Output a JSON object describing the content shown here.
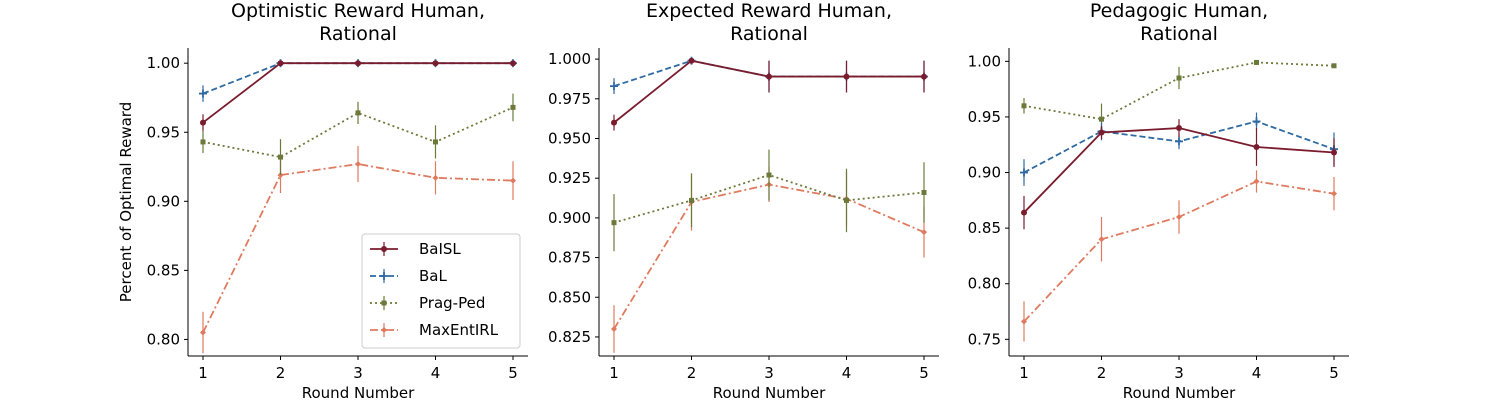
{
  "figure": {
    "ylabel": "Percent of Optimal Reward"
  },
  "series_styles": [
    {
      "name": "BaISL",
      "color": "#7a1c2e",
      "dash": "",
      "marker": "circle"
    },
    {
      "name": "BaL",
      "color": "#2f6aa3",
      "dash": "6,3",
      "marker": "plus"
    },
    {
      "name": "Prag-Ped",
      "color": "#6b7a3a",
      "dash": "2,3",
      "marker": "square"
    },
    {
      "name": "MaxEntIRL",
      "color": "#e07a5f",
      "dash": "8,3,2,3",
      "marker": "diamond"
    }
  ],
  "legend": {
    "placement": "lower-right",
    "panel": 0
  },
  "chart_data": [
    {
      "type": "line",
      "title_line1": "Optimistic Reward Human,",
      "title_line2": "Rational",
      "xlabel": "Round Number",
      "ylabel": "Percent of Optimal Reward",
      "x": [
        1,
        2,
        3,
        4,
        5
      ],
      "ylim": [
        0.788,
        1.011
      ],
      "yticks": [
        "0.80",
        "0.85",
        "0.90",
        "0.95",
        "1.00"
      ],
      "series": [
        {
          "name": "BaISL",
          "values": [
            0.957,
            1.0,
            1.0,
            1.0,
            1.0
          ],
          "err": [
            0.006,
            0.001,
            0.001,
            0.001,
            0.001
          ]
        },
        {
          "name": "BaL",
          "values": [
            0.978,
            1.0,
            1.0,
            1.0,
            1.0
          ],
          "err": [
            0.006,
            0.001,
            0.001,
            0.001,
            0.001
          ]
        },
        {
          "name": "Prag-Ped",
          "values": [
            0.943,
            0.932,
            0.964,
            0.943,
            0.968
          ],
          "err": [
            0.008,
            0.013,
            0.008,
            0.012,
            0.01
          ]
        },
        {
          "name": "MaxEntIRL",
          "values": [
            0.805,
            0.919,
            0.927,
            0.917,
            0.915
          ],
          "err": [
            0.015,
            0.013,
            0.013,
            0.012,
            0.014
          ]
        }
      ]
    },
    {
      "type": "line",
      "title_line1": "Expected Reward Human,",
      "title_line2": "Rational",
      "xlabel": "Round Number",
      "x": [
        1,
        2,
        3,
        4,
        5
      ],
      "ylim": [
        0.813,
        1.007
      ],
      "yticks": [
        "0.825",
        "0.850",
        "0.875",
        "0.900",
        "0.925",
        "0.950",
        "0.975",
        "1.000"
      ],
      "series": [
        {
          "name": "BaISL",
          "values": [
            0.96,
            0.999,
            0.989,
            0.989,
            0.989
          ],
          "err": [
            0.005,
            0.001,
            0.01,
            0.01,
            0.01
          ]
        },
        {
          "name": "BaL",
          "values": [
            0.983,
            0.999,
            0.989,
            0.989,
            0.989
          ],
          "err": [
            0.005,
            0.001,
            0.01,
            0.01,
            0.01
          ]
        },
        {
          "name": "Prag-Ped",
          "values": [
            0.897,
            0.911,
            0.927,
            0.911,
            0.916
          ],
          "err": [
            0.018,
            0.017,
            0.016,
            0.02,
            0.019
          ]
        },
        {
          "name": "MaxEntIRL",
          "values": [
            0.83,
            0.91,
            0.921,
            0.912,
            0.891
          ],
          "err": [
            0.015,
            0.018,
            0.011,
            0.017,
            0.016
          ]
        }
      ]
    },
    {
      "type": "line",
      "title_line1": "Pedagogic Human,",
      "title_line2": "Rational",
      "xlabel": "Round Number",
      "x": [
        1,
        2,
        3,
        4,
        5
      ],
      "ylim": [
        0.735,
        1.012
      ],
      "yticks": [
        "0.75",
        "0.80",
        "0.85",
        "0.90",
        "0.95",
        "1.00"
      ],
      "series": [
        {
          "name": "BaISL",
          "values": [
            0.864,
            0.936,
            0.94,
            0.923,
            0.918
          ],
          "err": [
            0.015,
            0.006,
            0.008,
            0.017,
            0.013
          ]
        },
        {
          "name": "BaL",
          "values": [
            0.9,
            0.937,
            0.928,
            0.946,
            0.921
          ],
          "err": [
            0.012,
            0.008,
            0.007,
            0.008,
            0.015
          ]
        },
        {
          "name": "Prag-Ped",
          "values": [
            0.96,
            0.948,
            0.985,
            0.999,
            0.996
          ],
          "err": [
            0.007,
            0.014,
            0.01,
            0.002,
            0.002
          ]
        },
        {
          "name": "MaxEntIRL",
          "values": [
            0.766,
            0.84,
            0.86,
            0.892,
            0.881
          ],
          "err": [
            0.018,
            0.02,
            0.015,
            0.01,
            0.015
          ]
        }
      ]
    }
  ]
}
